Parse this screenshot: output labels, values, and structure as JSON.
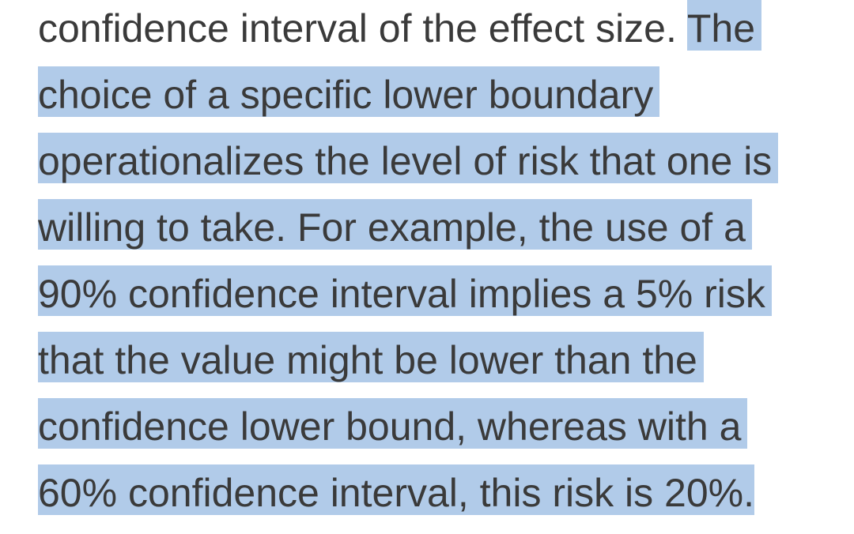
{
  "page": {
    "background_color": "#ffffff",
    "text_color": "#3a3a3a",
    "selection_color": "#b1cbe9"
  },
  "paragraph": {
    "lines": [
      {
        "unselected": "confidence interval of the effect size. ",
        "selected": "The"
      },
      {
        "selected": "choice of a specific lower boundary"
      },
      {
        "selected": "operationalizes the level of risk that one is"
      },
      {
        "selected": "willing to take. For example, the use of a"
      },
      {
        "selected": "90% confidence interval implies a 5% risk"
      },
      {
        "selected": "that the value might be lower than the"
      },
      {
        "selected": "confidence lower bound, whereas with a"
      },
      {
        "selected": "60% confidence interval, this risk is 20%."
      }
    ],
    "selection": {
      "selected_text": "The choice of a specific lower boundary operationalizes the level of risk that one is willing to take. For example, the use of a 90% confidence interval implies a 5% risk that the value might be lower than the confidence lower bound, whereas with a 60% confidence interval, this risk is 20%."
    }
  }
}
